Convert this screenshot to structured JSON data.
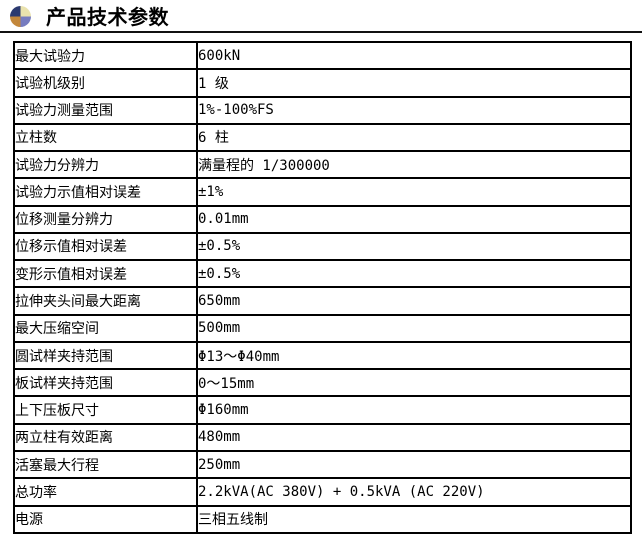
{
  "header": {
    "title": "产品技术参数",
    "icon": "sphere-bullet-icon",
    "icon_colors": {
      "top_left": "#2b3a70",
      "top_right": "#e9e2ae",
      "bottom_left": "#c3873b",
      "bottom_right": "#767cc0"
    }
  },
  "colors": {
    "background": "#ffffff",
    "table_border": "#000000",
    "text": "#000000",
    "title_rule": "#111111"
  },
  "table": {
    "rows": [
      {
        "label": "最大试验力",
        "value": "600kN"
      },
      {
        "label": "试验机级别",
        "value": "1 级"
      },
      {
        "label": "试验力测量范围",
        "value": "1%-100%FS"
      },
      {
        "label": "立柱数",
        "value": "6 柱"
      },
      {
        "label": "试验力分辨力",
        "value": "满量程的 1/300000"
      },
      {
        "label": "试验力示值相对误差",
        "value": "±1%"
      },
      {
        "label": "位移测量分辨力",
        "value": "0.01mm"
      },
      {
        "label": "位移示值相对误差",
        "value": "±0.5%"
      },
      {
        "label": "变形示值相对误差",
        "value": "±0.5%"
      },
      {
        "label": "拉伸夹头间最大距离",
        "value": "650mm"
      },
      {
        "label": "最大压缩空间",
        "value": "500mm"
      },
      {
        "label": "圆试样夹持范围",
        "value": "Φ13～Φ40mm"
      },
      {
        "label": "板试样夹持范围",
        "value": "0～15mm"
      },
      {
        "label": "上下压板尺寸",
        "value": "Φ160mm"
      },
      {
        "label": "两立柱有效距离",
        "value": "480mm"
      },
      {
        "label": "活塞最大行程",
        "value": "250mm"
      },
      {
        "label": "总功率",
        "value": "2.2kVA(AC 380V) + 0.5kVA (AC 220V)"
      },
      {
        "label": "电源",
        "value": "三相五线制"
      }
    ]
  }
}
